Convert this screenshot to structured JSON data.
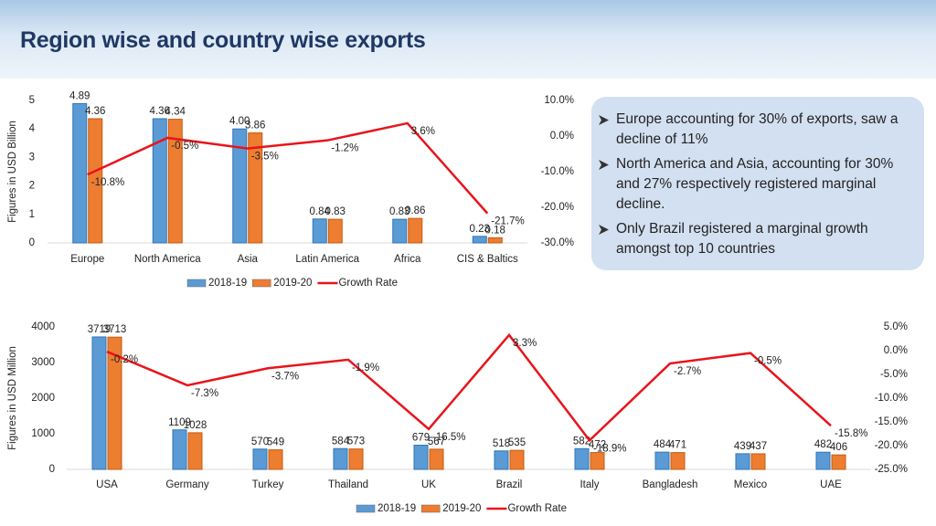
{
  "header": {
    "title": "Region wise and country wise exports"
  },
  "bullets": [
    "Europe accounting for 30% of exports, saw a decline of 11%",
    "North America and Asia, accounting for 30% and 27% respectively registered marginal decline.",
    "Only Brazil registered a marginal growth amongst top 10 countries"
  ],
  "chart_data": [
    {
      "type": "bar",
      "y_label": "Figures in USD Billion",
      "categories": [
        "Europe",
        "North America",
        "Asia",
        "Latin America",
        "Africa",
        "CIS & Baltics"
      ],
      "series": [
        {
          "name": "2018-19",
          "color": "#5b9bd5",
          "values": [
            4.89,
            4.36,
            4.0,
            0.84,
            0.83,
            0.23
          ],
          "value_labels": [
            "4.89",
            "4.36",
            "4.00",
            "0.84",
            "0.83",
            "0.23"
          ]
        },
        {
          "name": "2019-20",
          "color": "#ed7d31",
          "values": [
            4.36,
            4.34,
            3.86,
            0.83,
            0.86,
            0.18
          ]
        },
        {
          "name": "Growth Rate",
          "color": "#e8141b",
          "axis": "y2",
          "values": [
            -10.8,
            -0.5,
            -3.5,
            -1.2,
            3.6,
            -21.7
          ],
          "value_labels": [
            "-10.8%",
            "-0.5%",
            "-3.5%",
            "-1.2%",
            "3.6%",
            "-21.7%"
          ]
        }
      ],
      "ylim": [
        0,
        5
      ],
      "yticks": [
        0,
        1,
        2,
        3,
        4,
        5
      ],
      "y2lim": [
        -30,
        10
      ],
      "y2ticks": [
        {
          "value": -30,
          "label": "-30.0%"
        },
        {
          "value": -20,
          "label": "-20.0%"
        },
        {
          "value": -10,
          "label": "-10.0%"
        },
        {
          "value": 0,
          "label": "0.0%"
        },
        {
          "value": 10,
          "label": "10.0%"
        }
      ],
      "legend": "bottom"
    },
    {
      "type": "bar",
      "y_label": "Figures in USD Million",
      "categories": [
        "USA",
        "Germany",
        "Turkey",
        "Thailand",
        "UK",
        "Brazil",
        "Italy",
        "Bangladesh",
        "Mexico",
        "UAE"
      ],
      "series": [
        {
          "name": "2018-19",
          "color": "#5b9bd5",
          "values": [
            3719,
            1109,
            570,
            584,
            679,
            518,
            582,
            484,
            439,
            482
          ]
        },
        {
          "name": "2019-20",
          "color": "#ed7d31",
          "values": [
            3713,
            1028,
            549,
            573,
            567,
            535,
            472,
            471,
            437,
            406
          ]
        },
        {
          "name": "Growth Rate",
          "color": "#e8141b",
          "axis": "y2",
          "values": [
            -0.2,
            -7.3,
            -3.7,
            -1.9,
            -16.5,
            3.3,
            -18.9,
            -2.7,
            -0.5,
            -15.8
          ],
          "value_labels": [
            "-0.2%",
            "-7.3%",
            "-3.7%",
            "-1.9%",
            "-16.5%",
            "3.3%",
            "-18.9%",
            "-2.7%",
            "-0.5%",
            "-15.8%"
          ]
        }
      ],
      "ylim": [
        0,
        4000
      ],
      "yticks": [
        0,
        1000,
        2000,
        3000,
        4000
      ],
      "y2lim": [
        -25,
        5
      ],
      "y2ticks": [
        {
          "value": -25,
          "label": "-25.0%"
        },
        {
          "value": -20,
          "label": "-20.0%"
        },
        {
          "value": -15,
          "label": "-15.0%"
        },
        {
          "value": -10,
          "label": "-10.0%"
        },
        {
          "value": -5,
          "label": "-5.0%"
        },
        {
          "value": 0,
          "label": "0.0%"
        },
        {
          "value": 5,
          "label": "5.0%"
        }
      ],
      "legend": "bottom"
    }
  ]
}
